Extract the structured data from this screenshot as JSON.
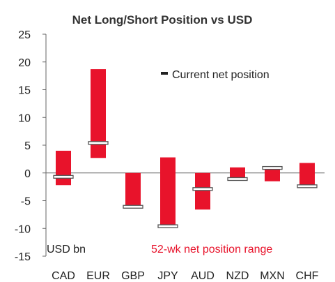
{
  "chart_data": {
    "type": "bar",
    "title": "Net Long/Short Position vs USD",
    "ylabel": "USD bn",
    "ylim": [
      -15,
      25
    ],
    "yticks": [
      25,
      20,
      15,
      10,
      5,
      0,
      -5,
      -10,
      -15
    ],
    "categories": [
      "CAD",
      "EUR",
      "GBP",
      "JPY",
      "AUD",
      "NZD",
      "MXN",
      "CHF"
    ],
    "series": [
      {
        "name": "52-wk net position range",
        "low": [
          -2.2,
          2.7,
          -6.1,
          -9.8,
          -6.6,
          -1.1,
          -1.5,
          -2.7
        ],
        "high": [
          4.0,
          18.7,
          0.0,
          2.8,
          0.0,
          1.0,
          0.8,
          1.8
        ]
      },
      {
        "name": "Current net position",
        "values": [
          -0.7,
          5.4,
          -6.1,
          -9.6,
          -2.9,
          -1.1,
          0.9,
          -2.4
        ]
      }
    ],
    "legend": {
      "current_label": "Current net position",
      "range_label": "52-wk net position range"
    },
    "grid": false,
    "colors": {
      "range": "#e8132b",
      "marker_fill": "#ffffff",
      "marker_stroke": "#555555",
      "axis": "#666666"
    }
  }
}
